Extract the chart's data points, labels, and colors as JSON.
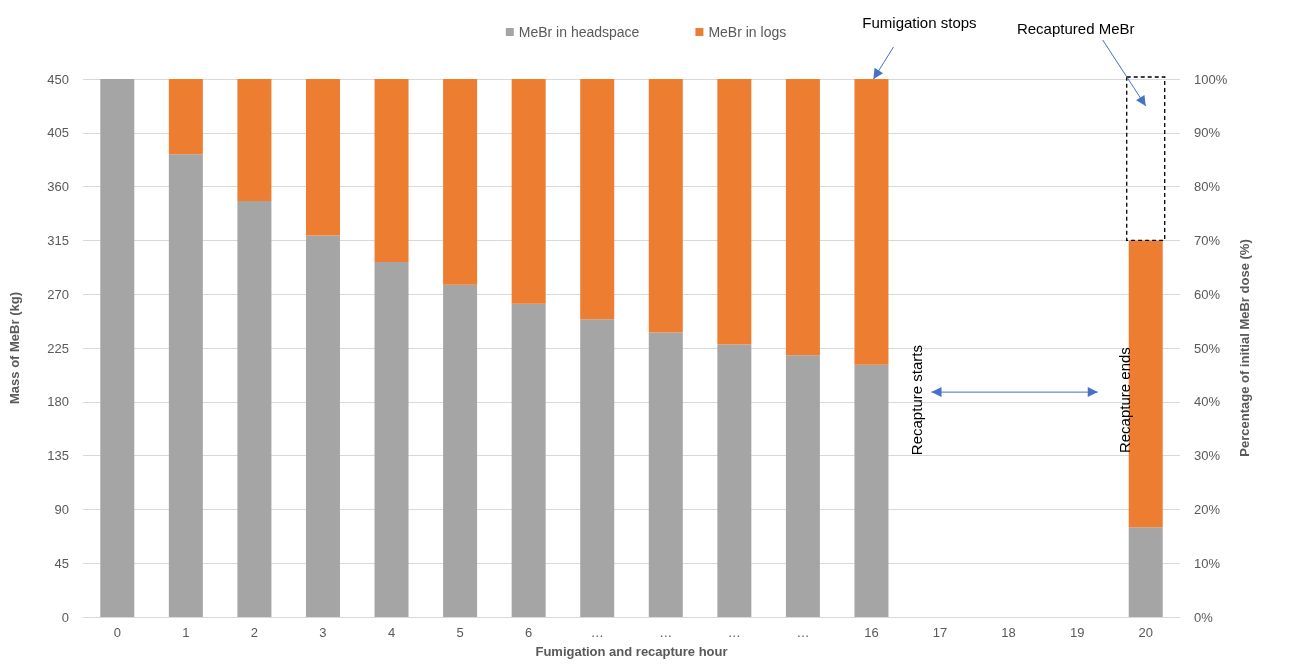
{
  "chart_data": {
    "type": "bar",
    "stacked": true,
    "xlabel": "Fumigation and recapture hour",
    "ylabel": "Mass of MeBr (kg)",
    "y2label": "Percentage of initial MeBr dose (%)",
    "categories": [
      "0",
      "1",
      "2",
      "3",
      "4",
      "5",
      "6",
      "…",
      "…",
      "…",
      "…",
      "16",
      "17",
      "18",
      "19",
      "20"
    ],
    "series": [
      {
        "name": "MeBr in headspace",
        "color": "#a5a5a5",
        "values": [
          450,
          387,
          348,
          319,
          297,
          278,
          262,
          249,
          238,
          228,
          219,
          211,
          null,
          null,
          null,
          75
        ]
      },
      {
        "name": "MeBr in logs",
        "color": "#ed7d31",
        "values": [
          0,
          63,
          102,
          131,
          153,
          172,
          188,
          201,
          212,
          222,
          231,
          239,
          null,
          null,
          null,
          240
        ]
      }
    ],
    "ylim": [
      0,
      450
    ],
    "yticks": [
      0,
      45,
      90,
      135,
      180,
      225,
      270,
      315,
      360,
      405,
      450
    ],
    "y2lim": [
      0,
      100
    ],
    "y2ticks": [
      {
        "value": 0,
        "label": "0%"
      },
      {
        "value": 10,
        "label": "10%"
      },
      {
        "value": 20,
        "label": "20%"
      },
      {
        "value": 30,
        "label": "30%"
      },
      {
        "value": 40,
        "label": "40%"
      },
      {
        "value": 50,
        "label": "50%"
      },
      {
        "value": 60,
        "label": "60%"
      },
      {
        "value": 70,
        "label": "70%"
      },
      {
        "value": 80,
        "label": "80%"
      },
      {
        "value": 90,
        "label": "90%"
      },
      {
        "value": 100,
        "label": "100%"
      }
    ],
    "grid": "y",
    "legend": "top",
    "annotations": [
      {
        "text": "Fumigation stops",
        "x": "16",
        "y": 450
      },
      "Recaptured MeBr",
      "Recapture starts",
      "Recapture ends"
    ]
  }
}
